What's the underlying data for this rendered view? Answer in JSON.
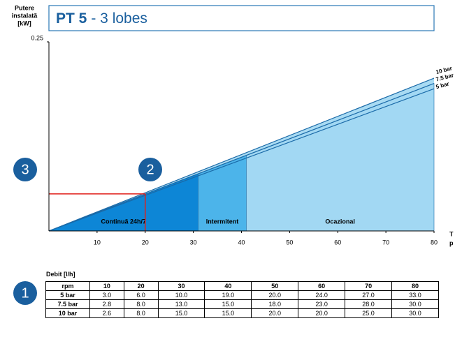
{
  "chart_data": {
    "type": "line",
    "title_bold": "PT 5",
    "title_rest": "- 3 lobes",
    "y_label": [
      "Putere",
      "instalată",
      "[kW]"
    ],
    "x_label": [
      "T",
      "p"
    ],
    "xlim": [
      0,
      80
    ],
    "xticks": [
      10,
      20,
      30,
      40,
      50,
      60,
      70,
      80
    ],
    "ylim": [
      0,
      0.25
    ],
    "yticks": [
      0.25
    ],
    "x": [
      0,
      80
    ],
    "series": [
      {
        "name": "10 bar",
        "color": "#1a6aa8",
        "values": [
          0,
          0.202
        ]
      },
      {
        "name": "7.5 bar",
        "color": "#1a6aa8",
        "values": [
          0,
          0.195
        ]
      },
      {
        "name": "5 bar",
        "color": "#1a6aa8",
        "values": [
          0,
          0.188
        ]
      }
    ],
    "area_color": "#a9dbf3",
    "zones": [
      {
        "label": "Continuă 24h/7",
        "x": [
          0,
          31
        ],
        "color": "#0d86d6"
      },
      {
        "label": "Intermitent",
        "x": [
          31,
          41
        ],
        "color": "#4cb4ea"
      },
      {
        "label": "Ocazional",
        "x": [
          41,
          80
        ],
        "color": "#a2d8f3"
      }
    ],
    "marker": {
      "x": 20,
      "y": 0.049,
      "color": "#e0201b"
    },
    "badges": [
      "1",
      "2",
      "3"
    ]
  },
  "table": {
    "caption": "Debit [l/h]",
    "header": [
      "rpm",
      "10",
      "20",
      "30",
      "40",
      "50",
      "60",
      "70",
      "80"
    ],
    "rows": [
      [
        "5 bar",
        "3.0",
        "6.0",
        "10.0",
        "19.0",
        "20.0",
        "24.0",
        "27.0",
        "33.0"
      ],
      [
        "7.5 bar",
        "2.8",
        "8.0",
        "13.0",
        "15.0",
        "18.0",
        "23.0",
        "28.0",
        "30.0"
      ],
      [
        "10 bar",
        "2.6",
        "8.0",
        "15.0",
        "15.0",
        "20.0",
        "20.0",
        "25.0",
        "30.0"
      ]
    ]
  }
}
